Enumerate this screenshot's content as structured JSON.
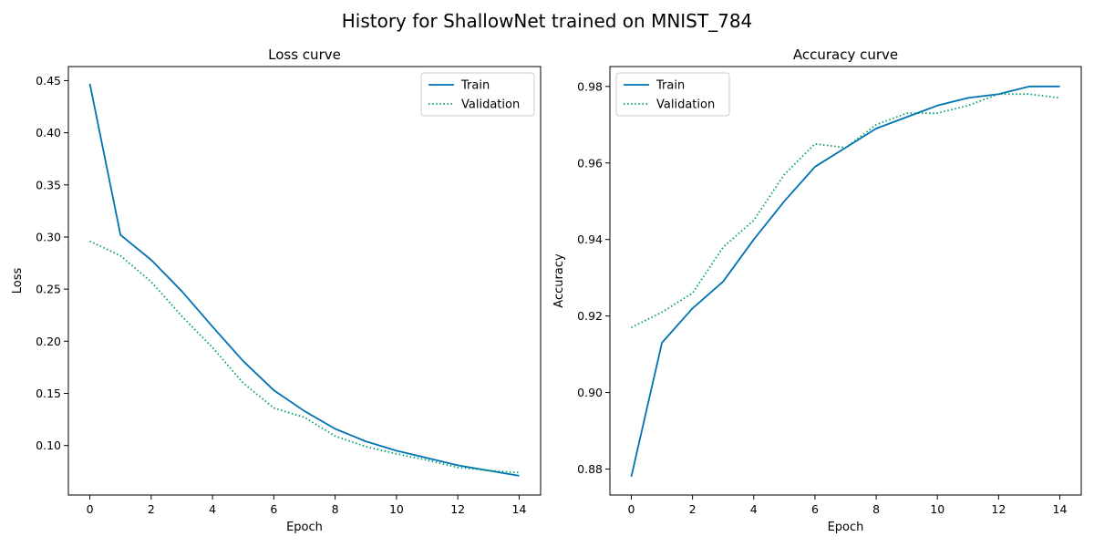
{
  "figure": {
    "title": "History for ShallowNet trained on MNIST_784"
  },
  "colors": {
    "train": "#0072b2",
    "validation": "#009e73"
  },
  "chart_data": [
    {
      "type": "line",
      "title": "Loss curve",
      "xlabel": "Epoch",
      "ylabel": "Loss",
      "xlim": [
        -0.7,
        14.7
      ],
      "ylim": [
        0.0525,
        0.4635
      ],
      "xticks": [
        0,
        2,
        4,
        6,
        8,
        10,
        12,
        14
      ],
      "yticks": [
        0.1,
        0.15,
        0.2,
        0.25,
        0.3,
        0.35,
        0.4,
        0.45
      ],
      "ytick_labels": [
        "0.10",
        "0.15",
        "0.20",
        "0.25",
        "0.30",
        "0.35",
        "0.40",
        "0.45"
      ],
      "legend": "upper right",
      "x": [
        0,
        1,
        2,
        3,
        4,
        5,
        6,
        7,
        8,
        9,
        10,
        11,
        12,
        13,
        14
      ],
      "series": [
        {
          "name": "Train",
          "style": "solid",
          "values": [
            0.447,
            0.302,
            0.278,
            0.248,
            0.214,
            0.181,
            0.153,
            0.133,
            0.116,
            0.104,
            0.095,
            0.088,
            0.081,
            0.076,
            0.071
          ]
        },
        {
          "name": "Validation",
          "style": "dotted",
          "values": [
            0.296,
            0.282,
            0.257,
            0.224,
            0.194,
            0.16,
            0.136,
            0.127,
            0.109,
            0.099,
            0.092,
            0.086,
            0.079,
            0.076,
            0.074
          ]
        }
      ]
    },
    {
      "type": "line",
      "title": "Accuracy curve",
      "xlabel": "Epoch",
      "ylabel": "Accuracy",
      "xlim": [
        -0.7,
        14.7
      ],
      "ylim": [
        0.8732,
        0.9852
      ],
      "xticks": [
        0,
        2,
        4,
        6,
        8,
        10,
        12,
        14
      ],
      "yticks": [
        0.88,
        0.9,
        0.92,
        0.94,
        0.96,
        0.98
      ],
      "ytick_labels": [
        "0.88",
        "0.90",
        "0.92",
        "0.94",
        "0.96",
        "0.98"
      ],
      "legend": "upper left",
      "x": [
        0,
        1,
        2,
        3,
        4,
        5,
        6,
        7,
        8,
        9,
        10,
        11,
        12,
        13,
        14
      ],
      "series": [
        {
          "name": "Train",
          "style": "solid",
          "values": [
            0.878,
            0.913,
            0.922,
            0.929,
            0.94,
            0.95,
            0.959,
            0.964,
            0.969,
            0.972,
            0.975,
            0.977,
            0.978,
            0.98,
            0.98
          ]
        },
        {
          "name": "Validation",
          "style": "dotted",
          "values": [
            0.917,
            0.921,
            0.926,
            0.938,
            0.945,
            0.957,
            0.965,
            0.964,
            0.97,
            0.973,
            0.973,
            0.975,
            0.978,
            0.978,
            0.977
          ]
        }
      ]
    }
  ]
}
